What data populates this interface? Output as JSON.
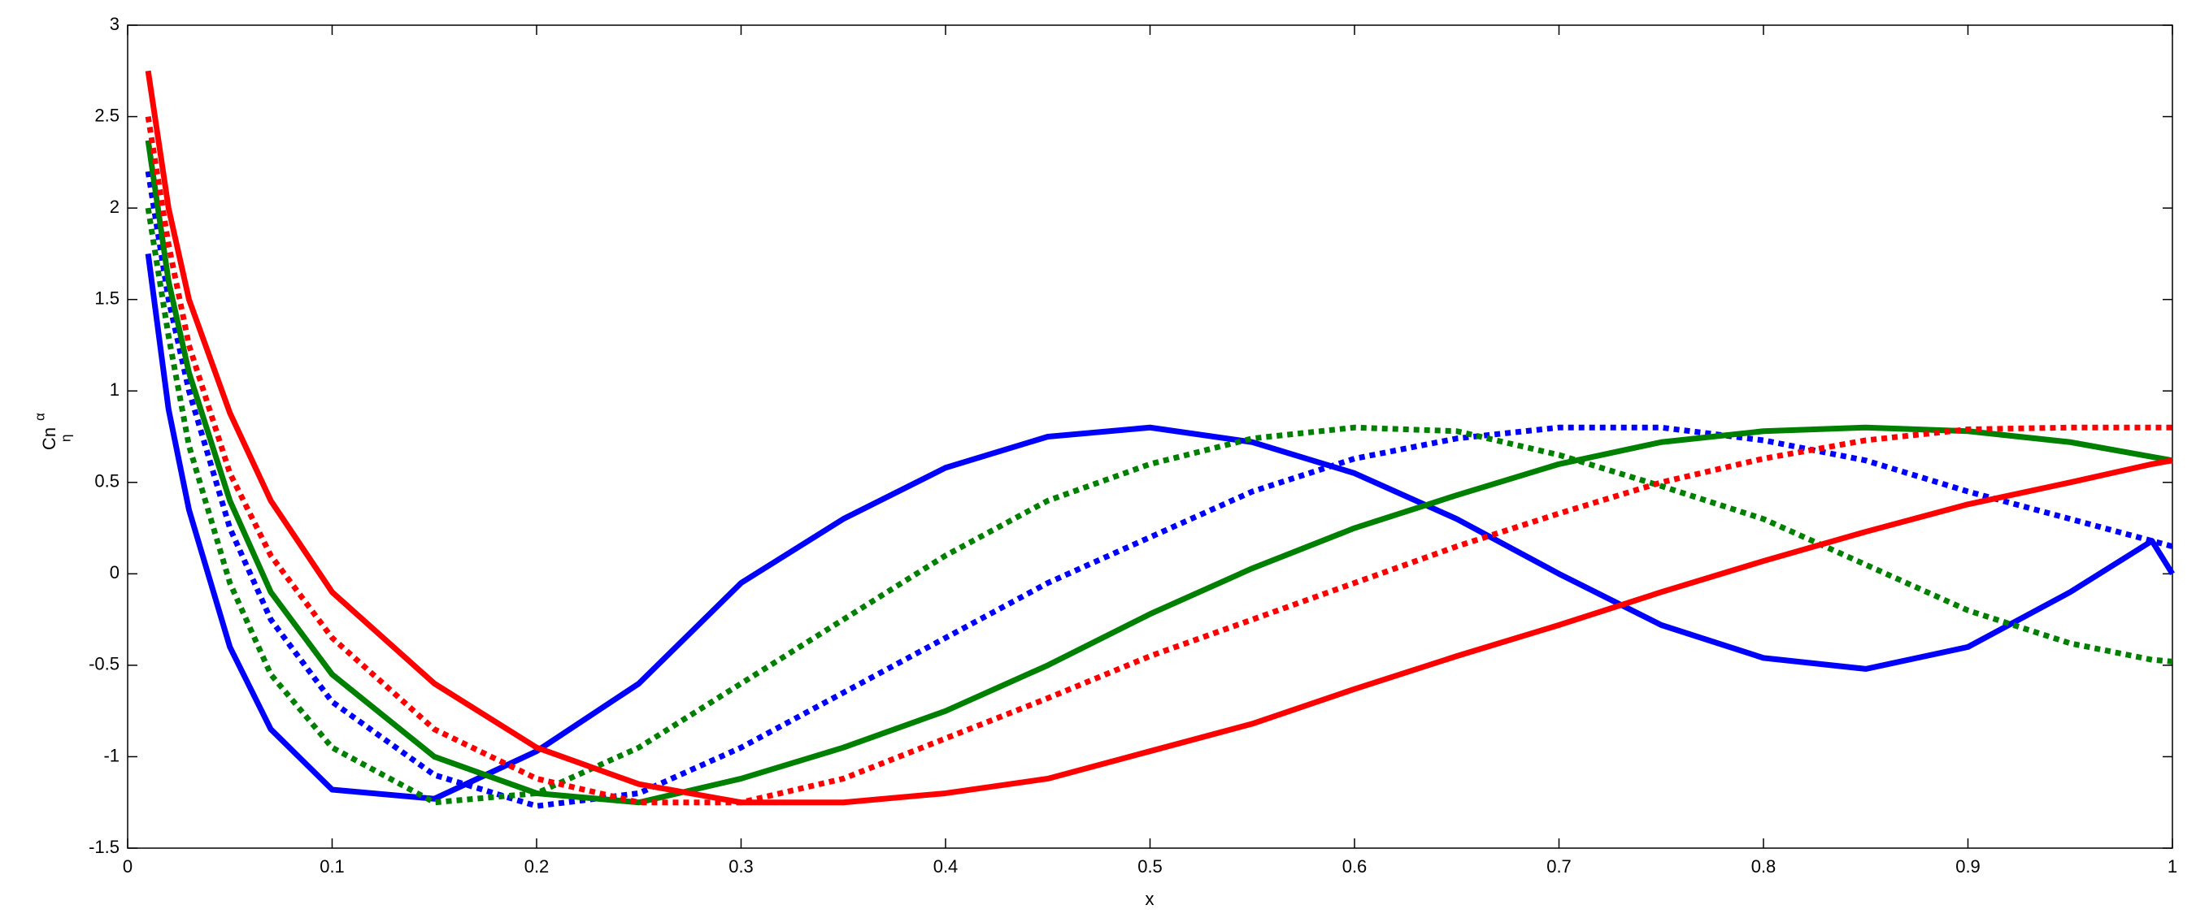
{
  "chart_data": {
    "type": "line",
    "xlabel": "x",
    "ylabel": "Cn",
    "ylabel_sup": "α",
    "ylabel_sub": "η",
    "x": [
      0.01,
      0.02,
      0.03,
      0.05,
      0.07,
      0.1,
      0.15,
      0.2,
      0.25,
      0.3,
      0.35,
      0.4,
      0.45,
      0.5,
      0.55,
      0.6,
      0.65,
      0.7,
      0.75,
      0.8,
      0.85,
      0.9,
      0.95,
      0.99,
      1.0
    ],
    "series": [
      {
        "color": "#0000ff",
        "linestyle": "solid",
        "values": [
          1.75,
          0.9,
          0.35,
          -0.4,
          -0.85,
          -1.18,
          -1.23,
          -0.97,
          -0.6,
          -0.05,
          0.3,
          0.58,
          0.75,
          0.8,
          0.72,
          0.55,
          0.3,
          0.0,
          -0.28,
          -0.46,
          -0.52,
          -0.4,
          -0.1,
          0.18,
          0.0
        ]
      },
      {
        "color": "#0000ff",
        "linestyle": "dotted",
        "values": [
          2.2,
          1.5,
          1.0,
          0.25,
          -0.25,
          -0.7,
          -1.1,
          -1.27,
          -1.2,
          -0.95,
          -0.65,
          -0.35,
          -0.05,
          0.2,
          0.45,
          0.63,
          0.74,
          0.8,
          0.8,
          0.73,
          0.62,
          0.45,
          0.3,
          0.18,
          0.15
        ]
      },
      {
        "color": "#008000",
        "linestyle": "solid",
        "values": [
          2.37,
          1.6,
          1.1,
          0.4,
          -0.1,
          -0.55,
          -1.0,
          -1.2,
          -1.25,
          -1.12,
          -0.95,
          -0.75,
          -0.5,
          -0.22,
          0.03,
          0.25,
          0.43,
          0.6,
          0.72,
          0.78,
          0.8,
          0.78,
          0.72,
          0.64,
          0.62
        ]
      },
      {
        "color": "#008000",
        "linestyle": "dotted",
        "values": [
          2.0,
          1.3,
          0.7,
          -0.05,
          -0.55,
          -0.95,
          -1.25,
          -1.2,
          -0.95,
          -0.6,
          -0.25,
          0.1,
          0.4,
          0.6,
          0.74,
          0.8,
          0.78,
          0.65,
          0.48,
          0.3,
          0.05,
          -0.2,
          -0.38,
          -0.47,
          -0.48
        ]
      },
      {
        "color": "#ff0000",
        "linestyle": "solid",
        "values": [
          2.75,
          2.0,
          1.5,
          0.88,
          0.4,
          -0.1,
          -0.6,
          -0.95,
          -1.15,
          -1.25,
          -1.25,
          -1.2,
          -1.12,
          -0.97,
          -0.82,
          -0.63,
          -0.45,
          -0.28,
          -0.1,
          0.07,
          0.23,
          0.38,
          0.5,
          0.6,
          0.62
        ]
      },
      {
        "color": "#ff0000",
        "linestyle": "dotted",
        "values": [
          2.5,
          1.8,
          1.25,
          0.55,
          0.1,
          -0.35,
          -0.85,
          -1.12,
          -1.25,
          -1.25,
          -1.12,
          -0.9,
          -0.68,
          -0.45,
          -0.25,
          -0.05,
          0.15,
          0.33,
          0.5,
          0.63,
          0.73,
          0.79,
          0.8,
          0.8,
          0.8
        ]
      }
    ],
    "xlim": [
      0,
      1
    ],
    "ylim": [
      -1.5,
      3
    ],
    "xticks": [
      0,
      0.1,
      0.2,
      0.3,
      0.4,
      0.5,
      0.6,
      0.7,
      0.8,
      0.9,
      1
    ],
    "yticks": [
      -1.5,
      -1,
      -0.5,
      0,
      0.5,
      1,
      1.5,
      2,
      2.5,
      3
    ],
    "grid": false
  }
}
